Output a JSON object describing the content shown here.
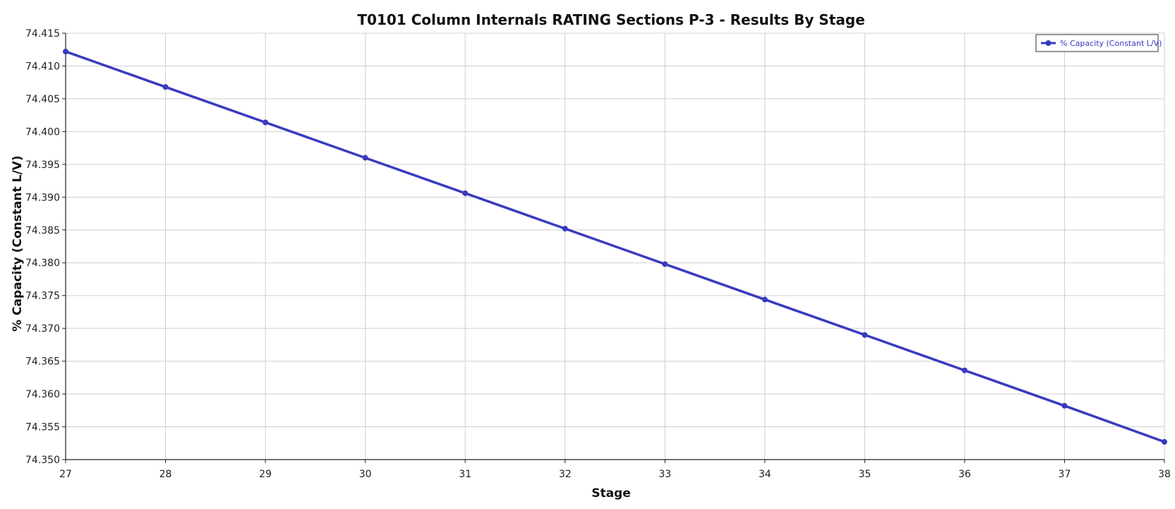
{
  "chart_data": {
    "type": "line",
    "title": "T0101 Column Internals RATING Sections P-3 - Results By Stage",
    "xlabel": "Stage",
    "ylabel": "% Capacity (Constant L/V)",
    "xlim": [
      27,
      38
    ],
    "ylim": [
      74.35,
      74.415
    ],
    "x_ticks": [
      "27",
      "28",
      "29",
      "30",
      "31",
      "32",
      "33",
      "34",
      "35",
      "36",
      "37",
      "38"
    ],
    "y_ticks": [
      "74.350",
      "74.355",
      "74.360",
      "74.365",
      "74.370",
      "74.375",
      "74.380",
      "74.385",
      "74.390",
      "74.395",
      "74.400",
      "74.405",
      "74.410",
      "74.415"
    ],
    "grid": true,
    "legend_position": "top-right",
    "series": [
      {
        "name": "% Capacity (Constant L/V)",
        "color": "#3a3ac0",
        "x": [
          27,
          28,
          29,
          30,
          31,
          32,
          33,
          34,
          35,
          36,
          37,
          38
        ],
        "y": [
          74.4122,
          74.4068,
          74.4014,
          74.396,
          74.3906,
          74.3852,
          74.3798,
          74.3744,
          74.369,
          74.3636,
          74.3582,
          74.3527
        ]
      }
    ]
  }
}
